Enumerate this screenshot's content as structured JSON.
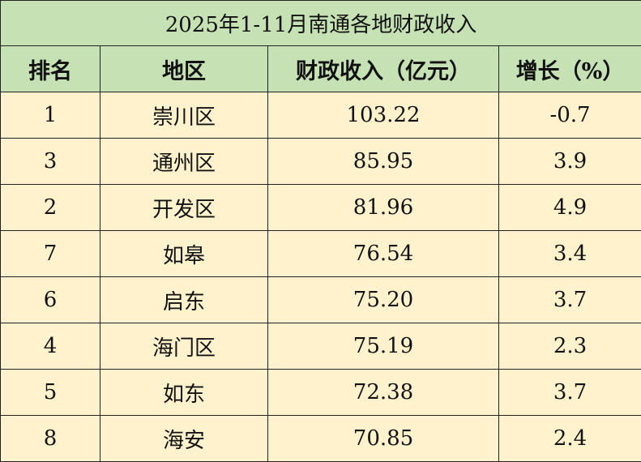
{
  "chart_data": {
    "type": "table",
    "title": "2025年1-11月南通各地财政收入",
    "columns": [
      "排名",
      "地区",
      "财政收入（亿元）",
      "增长（%）"
    ],
    "rows": [
      [
        "1",
        "崇川区",
        "103.22",
        "-0.7"
      ],
      [
        "3",
        "通州区",
        "85.95",
        "3.9"
      ],
      [
        "2",
        "开发区",
        "81.96",
        "4.9"
      ],
      [
        "7",
        "如皋",
        "76.54",
        "3.4"
      ],
      [
        "6",
        "启东",
        "75.20",
        "3.7"
      ],
      [
        "4",
        "海门区",
        "75.19",
        "2.3"
      ],
      [
        "5",
        "如东",
        "72.38",
        "3.7"
      ],
      [
        "8",
        "海安",
        "70.85",
        "2.4"
      ]
    ]
  },
  "colors": {
    "header_bg": "#c6e2b4",
    "row_bg": "#fff2cc",
    "border": "#222222"
  }
}
